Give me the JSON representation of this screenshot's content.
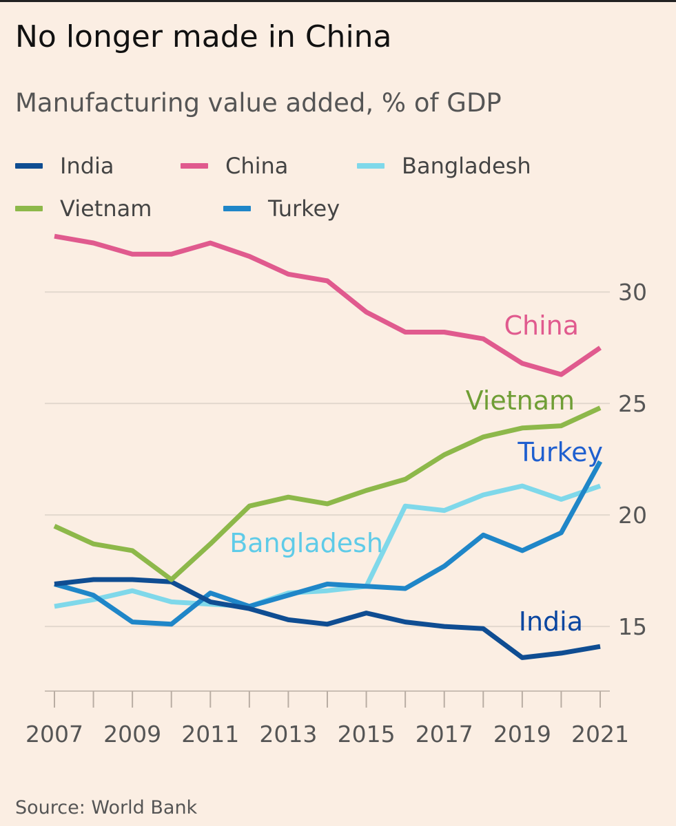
{
  "title": "No longer made in China",
  "subtitle": "Manufacturing value added, % of GDP",
  "source": "Source: World Bank",
  "legend": [
    {
      "name": "India",
      "color": "#0f4d92"
    },
    {
      "name": "China",
      "color": "#e05a8e"
    },
    {
      "name": "Bangladesh",
      "color": "#7fd8ea"
    },
    {
      "name": "Vietnam",
      "color": "#8db84a"
    },
    {
      "name": "Turkey",
      "color": "#1f86c8"
    }
  ],
  "chart_data": {
    "type": "line",
    "title": "No longer made in China",
    "subtitle": "Manufacturing value added, % of GDP",
    "xlabel": "",
    "ylabel": "",
    "x": [
      2007,
      2008,
      2009,
      2010,
      2011,
      2012,
      2013,
      2014,
      2015,
      2016,
      2017,
      2018,
      2019,
      2020,
      2021
    ],
    "x_tick_labels": [
      "2007",
      "2009",
      "2011",
      "2013",
      "2015",
      "2017",
      "2019",
      "2021"
    ],
    "y_ticks": [
      15,
      20,
      25,
      30
    ],
    "y_tick_labels": [
      "15",
      "20",
      "25",
      "30"
    ],
    "ylim": [
      12.1,
      32.6
    ],
    "grid": "horizontal",
    "legend_position": "top",
    "series": [
      {
        "name": "China",
        "color": "#e05a8e",
        "label_color": "#e05a8e",
        "values": [
          32.5,
          32.2,
          31.7,
          31.7,
          32.2,
          31.6,
          30.8,
          30.5,
          29.1,
          28.2,
          28.2,
          27.9,
          26.8,
          26.3,
          27.5
        ]
      },
      {
        "name": "Vietnam",
        "color": "#8db84a",
        "label_color": "#6f9e35",
        "values": [
          19.5,
          18.7,
          18.4,
          17.1,
          18.7,
          20.4,
          20.8,
          20.5,
          21.1,
          21.6,
          22.7,
          23.5,
          23.9,
          24.0,
          24.8
        ]
      },
      {
        "name": "Turkey",
        "color": "#1f86c8",
        "label_color": "#1f5fcf",
        "values": [
          16.9,
          16.4,
          15.2,
          15.1,
          16.5,
          15.9,
          16.4,
          16.9,
          16.8,
          16.7,
          17.7,
          19.1,
          18.4,
          19.2,
          22.4
        ]
      },
      {
        "name": "Bangladesh",
        "color": "#7fd8ea",
        "label_color": "#5fcbe8",
        "values": [
          15.9,
          16.2,
          16.6,
          16.1,
          16.0,
          15.9,
          16.5,
          16.6,
          16.8,
          20.4,
          20.2,
          20.9,
          21.3,
          20.7,
          21.3
        ]
      },
      {
        "name": "India",
        "color": "#0f4d92",
        "label_color": "#0a46a0",
        "values": [
          16.9,
          17.1,
          17.1,
          17.0,
          16.1,
          15.8,
          15.3,
          15.1,
          15.6,
          15.2,
          15.0,
          14.9,
          13.6,
          13.8,
          14.1
        ]
      }
    ],
    "annotations": [
      "China",
      "Vietnam",
      "Turkey",
      "Bangladesh",
      "India"
    ]
  }
}
